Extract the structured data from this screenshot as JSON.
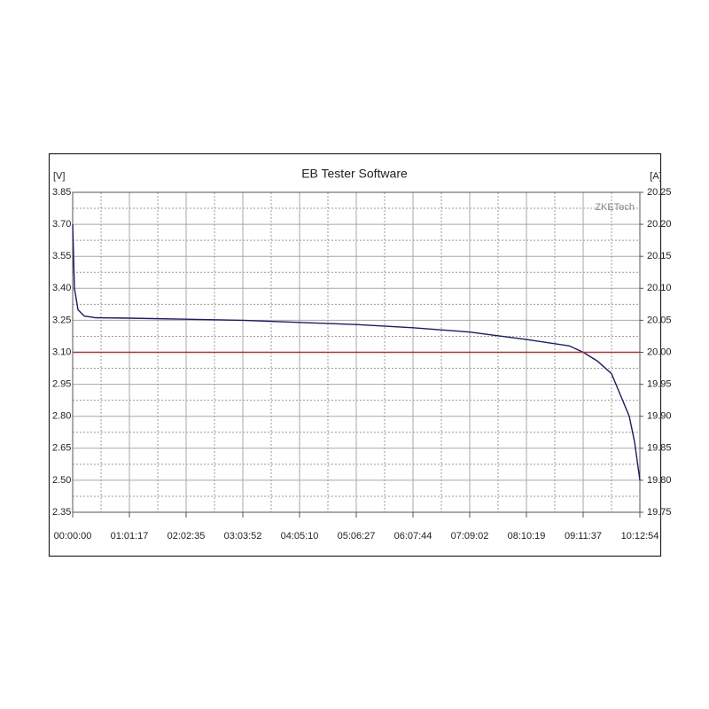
{
  "chart_data": {
    "type": "line",
    "title": "EB Tester Software",
    "y_label": "[V]",
    "y2_label": "[A]",
    "watermark": "ZKETech",
    "x": [
      0,
      115,
      345,
      747,
      1500,
      3677,
      7355,
      11032,
      14710,
      18387,
      22064,
      25742,
      29419,
      32200,
      33097,
      34000,
      34935,
      35510,
      36085,
      36430,
      36660,
      36774
    ],
    "series": [
      {
        "name": "Voltage",
        "color": "#1c1c5e",
        "axis": "y",
        "values": [
          3.7,
          3.4,
          3.3,
          3.27,
          3.262,
          3.26,
          3.255,
          3.25,
          3.24,
          3.23,
          3.215,
          3.195,
          3.16,
          3.13,
          3.1,
          3.06,
          3.0,
          2.9,
          2.8,
          2.68,
          2.56,
          2.5
        ]
      },
      {
        "name": "Current",
        "color": "#a03838",
        "axis": "y2",
        "values": [
          20.0,
          20.0,
          20.0,
          20.0,
          20.0,
          20.0,
          20.0,
          20.0,
          20.0,
          20.0,
          20.0,
          20.0,
          20.0,
          20.0,
          20.0,
          20.0,
          20.0,
          20.0,
          20.0,
          20.0,
          20.0,
          20.0
        ]
      }
    ],
    "xlim": [
      0,
      36774
    ],
    "xticks": [
      {
        "value": 0,
        "label": "00:00:00"
      },
      {
        "value": 3677,
        "label": "01:01:17"
      },
      {
        "value": 7355,
        "label": "02:02:35"
      },
      {
        "value": 11032,
        "label": "03:03:52"
      },
      {
        "value": 14710,
        "label": "04:05:10"
      },
      {
        "value": 18387,
        "label": "05:06:27"
      },
      {
        "value": 22064,
        "label": "06:07:44"
      },
      {
        "value": 25742,
        "label": "07:09:02"
      },
      {
        "value": 29419,
        "label": "08:10:19"
      },
      {
        "value": 33097,
        "label": "09:11:37"
      },
      {
        "value": 36774,
        "label": "10:12:54"
      }
    ],
    "ylim": [
      2.35,
      3.85
    ],
    "yticks": [
      3.85,
      {
        "value": 3.7,
        "label": "3.70"
      },
      3.55,
      {
        "value": 3.4,
        "label": "3.40"
      },
      3.25,
      {
        "value": 3.1,
        "label": "3.10"
      },
      2.95,
      {
        "value": 2.8,
        "label": "2.80"
      },
      2.65,
      {
        "value": 2.5,
        "label": "2.50"
      },
      2.35
    ],
    "y2lim": [
      19.75,
      20.25
    ],
    "y2ticks": [
      20.25,
      {
        "value": 20.2,
        "label": "20.20"
      },
      20.15,
      {
        "value": 20.1,
        "label": "20.10"
      },
      20.05,
      {
        "value": 20.0,
        "label": "20.00"
      },
      19.95,
      {
        "value": 19.9,
        "label": "19.90"
      },
      19.85,
      {
        "value": 19.8,
        "label": "19.80"
      },
      19.75
    ],
    "grid": true
  }
}
